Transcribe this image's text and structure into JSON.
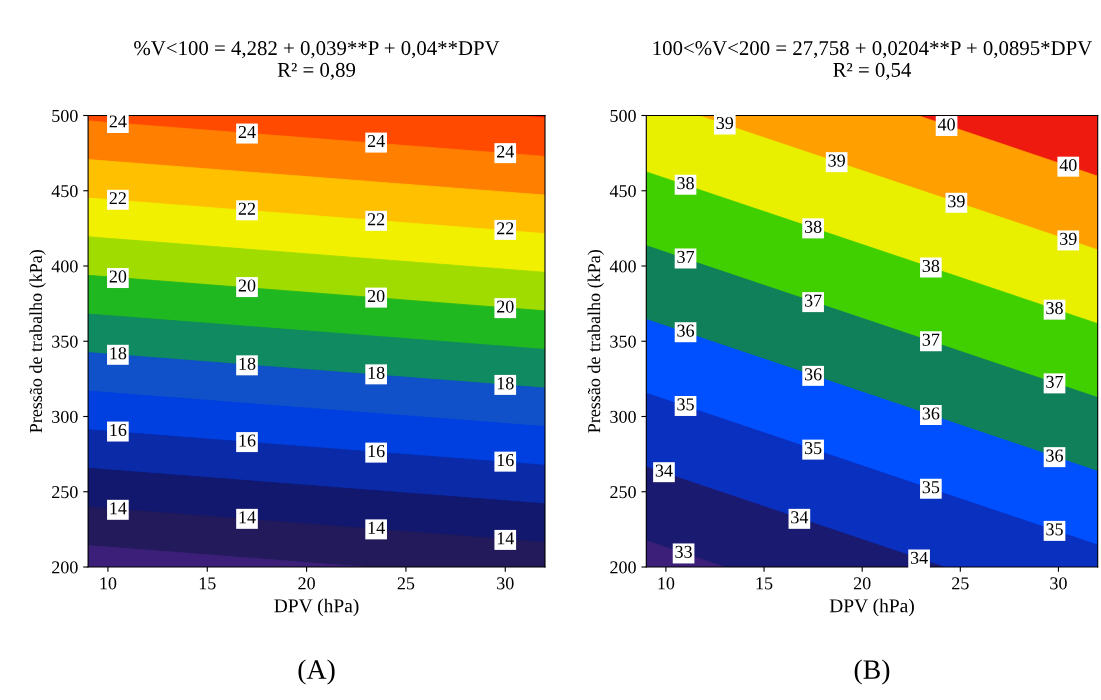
{
  "chart_data": [
    {
      "type": "area",
      "title": "%V<100 = 4,282 + 0,039**P + 0,04**DPV",
      "subtitle": "R² = 0,89",
      "xlabel": "DPV (hPa)",
      "ylabel": "Pressão de trabalho (kPa)",
      "series": [
        {
          "color": "#3b1f78",
          "x": [
            9,
            22.95
          ],
          "values": [
            214.3,
            200
          ]
        },
        {
          "color": "#221a5a",
          "x": [
            9,
            32
          ],
          "values": [
            239.9,
            216.4
          ]
        },
        {
          "color": "#12186e",
          "x": [
            9,
            32
          ],
          "values": [
            265.6,
            242.0
          ]
        },
        {
          "color": "#0a2aa8",
          "x": [
            9,
            32
          ],
          "values": [
            291.2,
            267.6
          ]
        },
        {
          "color": "#0040e0",
          "x": [
            9,
            32
          ],
          "values": [
            316.9,
            293.3
          ]
        },
        {
          "color": "#1050c8",
          "x": [
            9,
            32
          ],
          "values": [
            342.5,
            318.9
          ]
        },
        {
          "color": "#108a60",
          "x": [
            9,
            32
          ],
          "values": [
            368.1,
            344.6
          ]
        },
        {
          "color": "#20b820",
          "x": [
            9,
            32
          ],
          "values": [
            393.8,
            370.2
          ]
        },
        {
          "color": "#a0dc00",
          "x": [
            9,
            32
          ],
          "values": [
            419.4,
            395.8
          ]
        },
        {
          "color": "#f0f000",
          "x": [
            9,
            32
          ],
          "values": [
            445.1,
            421.5
          ]
        },
        {
          "color": "#ffc000",
          "x": [
            9,
            32
          ],
          "values": [
            470.7,
            447.1
          ]
        },
        {
          "color": "#ff8000",
          "x": [
            9,
            32
          ],
          "values": [
            496.4,
            472.8
          ]
        },
        {
          "color": "#ff4a00",
          "x": [
            9,
            30.45,
            32
          ],
          "values": [
            500,
            500,
            498.4
          ]
        }
      ],
      "xlim": [
        9,
        32
      ],
      "ylim": [
        200,
        500
      ],
      "xticks": [
        10,
        15,
        20,
        25,
        30
      ],
      "yticks": [
        200,
        250,
        300,
        350,
        400,
        450,
        500
      ],
      "grid": false,
      "annotations": [
        {
          "text": "24",
          "x": 10.5,
          "y": 495
        },
        {
          "text": "24",
          "x": 17,
          "y": 488
        },
        {
          "text": "24",
          "x": 23.5,
          "y": 482
        },
        {
          "text": "24",
          "x": 30,
          "y": 475
        },
        {
          "text": "22",
          "x": 10.5,
          "y": 444
        },
        {
          "text": "22",
          "x": 17,
          "y": 437
        },
        {
          "text": "22",
          "x": 23.5,
          "y": 430
        },
        {
          "text": "22",
          "x": 30,
          "y": 424
        },
        {
          "text": "20",
          "x": 10.5,
          "y": 392
        },
        {
          "text": "20",
          "x": 17,
          "y": 386
        },
        {
          "text": "20",
          "x": 23.5,
          "y": 379
        },
        {
          "text": "20",
          "x": 30,
          "y": 372
        },
        {
          "text": "18",
          "x": 10.5,
          "y": 341
        },
        {
          "text": "18",
          "x": 17,
          "y": 334
        },
        {
          "text": "18",
          "x": 23.5,
          "y": 328
        },
        {
          "text": "18",
          "x": 30,
          "y": 321
        },
        {
          "text": "16",
          "x": 10.5,
          "y": 290
        },
        {
          "text": "16",
          "x": 17,
          "y": 283
        },
        {
          "text": "16",
          "x": 23.5,
          "y": 276
        },
        {
          "text": "16",
          "x": 30,
          "y": 270
        },
        {
          "text": "14",
          "x": 10.5,
          "y": 238
        },
        {
          "text": "14",
          "x": 17,
          "y": 232
        },
        {
          "text": "14",
          "x": 23.5,
          "y": 225
        },
        {
          "text": "14",
          "x": 30,
          "y": 218
        },
        "(A)"
      ]
    },
    {
      "type": "area",
      "title": "100<%V<200 = 27,758 + 0,0204**P + 0,0895*DPV",
      "subtitle": "R² = 0,54",
      "xlabel": "DPV (hPa)",
      "ylabel": "Pressão de trabalho (kPa)",
      "series": [
        {
          "color": "#3b1f78",
          "x": [
            9,
            12.98
          ],
          "values": [
            217.5,
            200
          ]
        },
        {
          "color": "#1a1a70",
          "x": [
            9,
            24.16
          ],
          "values": [
            266.5,
            200
          ]
        },
        {
          "color": "#0a30c0",
          "x": [
            9,
            32
          ],
          "values": [
            315.5,
            214.6
          ]
        },
        {
          "color": "#0050ff",
          "x": [
            9,
            32
          ],
          "values": [
            364.5,
            263.6
          ]
        },
        {
          "color": "#10805a",
          "x": [
            9,
            32
          ],
          "values": [
            413.5,
            312.6
          ]
        },
        {
          "color": "#40d000",
          "x": [
            9,
            32
          ],
          "values": [
            462.5,
            361.7
          ]
        },
        {
          "color": "#e8f000",
          "x": [
            9,
            11.64,
            32
          ],
          "values": [
            500,
            500,
            410.7
          ]
        },
        {
          "color": "#ffa000",
          "x": [
            11.64,
            22.82,
            32
          ],
          "values": [
            500,
            500,
            459.7
          ]
        }
      ],
      "xlim": [
        9,
        32
      ],
      "ylim": [
        200,
        500
      ],
      "xticks": [
        10,
        15,
        20,
        25,
        30
      ],
      "yticks": [
        200,
        250,
        300,
        350,
        400,
        450,
        500
      ],
      "grid": false,
      "annotations": [
        {
          "text": "33",
          "x": 10.9,
          "y": 209
        },
        {
          "text": "34",
          "x": 9.9,
          "y": 263
        },
        {
          "text": "35",
          "x": 11,
          "y": 307
        },
        {
          "text": "36",
          "x": 11,
          "y": 356
        },
        {
          "text": "37",
          "x": 11,
          "y": 405
        },
        {
          "text": "38",
          "x": 11,
          "y": 454
        },
        {
          "text": "39",
          "x": 13,
          "y": 494
        },
        {
          "text": "34",
          "x": 16.8,
          "y": 232
        },
        {
          "text": "35",
          "x": 17.5,
          "y": 278
        },
        {
          "text": "36",
          "x": 17.5,
          "y": 327
        },
        {
          "text": "37",
          "x": 17.5,
          "y": 376
        },
        {
          "text": "38",
          "x": 17.5,
          "y": 425
        },
        {
          "text": "39",
          "x": 18.7,
          "y": 469
        },
        {
          "text": "34",
          "x": 22.9,
          "y": 205
        },
        {
          "text": "35",
          "x": 23.5,
          "y": 252
        },
        {
          "text": "36",
          "x": 23.5,
          "y": 301
        },
        {
          "text": "37",
          "x": 23.5,
          "y": 350
        },
        {
          "text": "38",
          "x": 23.5,
          "y": 399
        },
        {
          "text": "39",
          "x": 24.8,
          "y": 442
        },
        {
          "text": "40",
          "x": 24.3,
          "y": 493
        },
        {
          "text": "35",
          "x": 29.8,
          "y": 224
        },
        {
          "text": "36",
          "x": 29.8,
          "y": 273
        },
        {
          "text": "37",
          "x": 29.8,
          "y": 322
        },
        {
          "text": "38",
          "x": 29.8,
          "y": 371
        },
        {
          "text": "39",
          "x": 30.5,
          "y": 417
        },
        {
          "text": "40",
          "x": 30.5,
          "y": 466
        },
        "(B)"
      ]
    }
  ]
}
